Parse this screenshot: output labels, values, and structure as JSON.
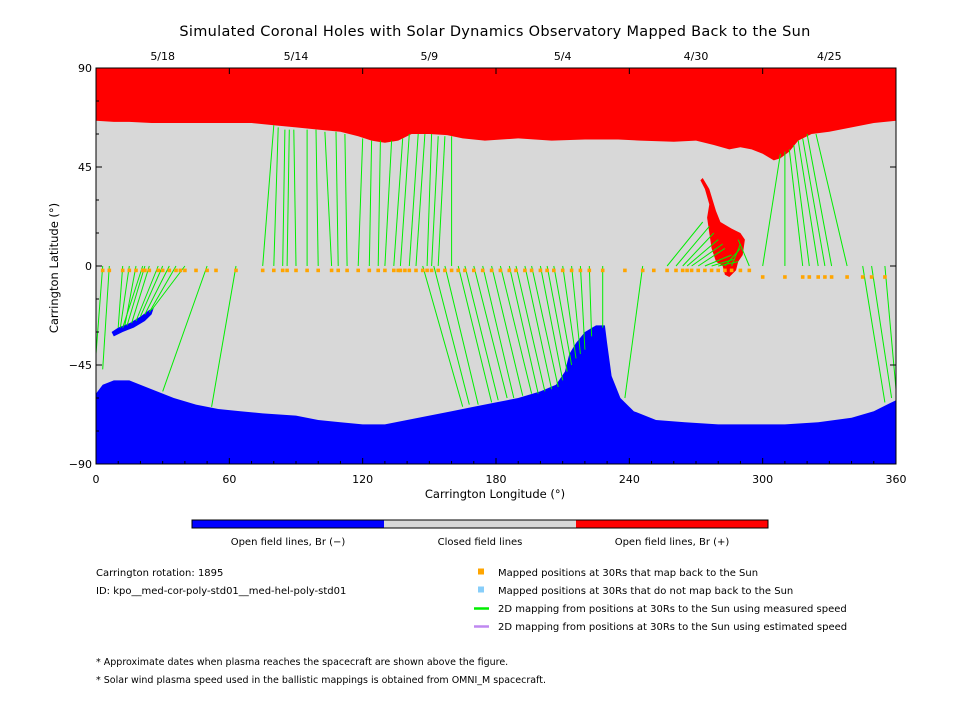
{
  "chart_data": {
    "type": "map",
    "title": "Simulated Coronal Holes with Solar Dynamics Observatory Mapped Back to the Sun",
    "xlabel": "Carrington Longitude (°)",
    "ylabel": "Carrington Latitude (°)",
    "xlim": [
      0,
      360
    ],
    "ylim": [
      -90,
      90
    ],
    "x_ticks": [
      0,
      60,
      120,
      180,
      240,
      300,
      360
    ],
    "y_ticks": [
      -90,
      -45,
      0,
      45,
      90
    ],
    "x_tick_labels": [
      "0",
      "60",
      "120",
      "180",
      "240",
      "300",
      "360"
    ],
    "y_tick_labels": [
      "−90",
      "−45",
      "0",
      "45",
      "90"
    ],
    "top_dates": [
      {
        "lon": 30,
        "label": "5/18"
      },
      {
        "lon": 90,
        "label": "5/14"
      },
      {
        "lon": 150,
        "label": "5/9"
      },
      {
        "lon": 210,
        "label": "5/4"
      },
      {
        "lon": 270,
        "label": "4/30"
      },
      {
        "lon": 330,
        "label": "4/25"
      }
    ],
    "colors": {
      "open_negative": "#0000ff",
      "closed": "#d8d8d8",
      "open_positive": "#ff0000",
      "mapped_back": "#ffa500",
      "not_mapped": "#87cefa",
      "measured_speed": "#00ee00",
      "estimated_speed": "#bf88f0"
    },
    "north_hole_boundary": [
      [
        0,
        66
      ],
      [
        8,
        65.5
      ],
      [
        15,
        65.5
      ],
      [
        25,
        65
      ],
      [
        35,
        65
      ],
      [
        50,
        65
      ],
      [
        70,
        65
      ],
      [
        80,
        64
      ],
      [
        90,
        63
      ],
      [
        100,
        62
      ],
      [
        110,
        61
      ],
      [
        118,
        59
      ],
      [
        124,
        57
      ],
      [
        130,
        56
      ],
      [
        136,
        57
      ],
      [
        142,
        60
      ],
      [
        150,
        60
      ],
      [
        158,
        59.5
      ],
      [
        165,
        58
      ],
      [
        175,
        57
      ],
      [
        190,
        58
      ],
      [
        205,
        57
      ],
      [
        220,
        57.5
      ],
      [
        235,
        57.5
      ],
      [
        245,
        57
      ],
      [
        260,
        56.5
      ],
      [
        270,
        57
      ],
      [
        278,
        55
      ],
      [
        285,
        53
      ],
      [
        290,
        54
      ],
      [
        295,
        53
      ],
      [
        300,
        51
      ],
      [
        305,
        48
      ],
      [
        308,
        49
      ],
      [
        312,
        52
      ],
      [
        316,
        57
      ],
      [
        322,
        60
      ],
      [
        330,
        61
      ],
      [
        340,
        63
      ],
      [
        350,
        65
      ],
      [
        360,
        66
      ]
    ],
    "south_hole_boundary": [
      [
        0,
        -58
      ],
      [
        3,
        -54
      ],
      [
        8,
        -52
      ],
      [
        15,
        -52
      ],
      [
        25,
        -56
      ],
      [
        35,
        -60
      ],
      [
        45,
        -63
      ],
      [
        55,
        -65
      ],
      [
        65,
        -66
      ],
      [
        75,
        -67
      ],
      [
        90,
        -68
      ],
      [
        100,
        -70
      ],
      [
        110,
        -71
      ],
      [
        120,
        -72
      ],
      [
        130,
        -72
      ],
      [
        140,
        -70
      ],
      [
        150,
        -68
      ],
      [
        160,
        -66
      ],
      [
        170,
        -64
      ],
      [
        180,
        -62
      ],
      [
        190,
        -60
      ],
      [
        200,
        -57
      ],
      [
        207,
        -54
      ],
      [
        211,
        -48
      ],
      [
        213,
        -40
      ],
      [
        216,
        -35
      ],
      [
        220,
        -30
      ],
      [
        225,
        -27
      ],
      [
        229,
        -27
      ],
      [
        230,
        -35
      ],
      [
        232,
        -50
      ],
      [
        236,
        -60
      ],
      [
        242,
        -66
      ],
      [
        252,
        -70
      ],
      [
        265,
        -71
      ],
      [
        280,
        -72
      ],
      [
        295,
        -72
      ],
      [
        310,
        -72
      ],
      [
        325,
        -71
      ],
      [
        340,
        -69
      ],
      [
        350,
        -66
      ],
      [
        360,
        -61
      ]
    ],
    "south_patch": [
      [
        8,
        -32
      ],
      [
        12,
        -30
      ],
      [
        17,
        -28
      ],
      [
        22,
        -25
      ],
      [
        25,
        -22
      ],
      [
        26,
        -19
      ],
      [
        24,
        -20
      ],
      [
        20,
        -23
      ],
      [
        15,
        -26
      ],
      [
        10,
        -28
      ],
      [
        7,
        -30
      ]
    ],
    "north_tongue": [
      [
        273,
        40
      ],
      [
        276,
        35
      ],
      [
        279,
        25
      ],
      [
        281,
        20
      ],
      [
        286,
        17
      ],
      [
        290,
        15
      ],
      [
        292,
        12
      ],
      [
        291,
        5
      ],
      [
        289,
        2
      ],
      [
        288,
        -2
      ],
      [
        285,
        -5
      ],
      [
        283,
        -4
      ],
      [
        282,
        0
      ],
      [
        279,
        2
      ],
      [
        277,
        8
      ],
      [
        276,
        15
      ],
      [
        275,
        22
      ],
      [
        276,
        28
      ],
      [
        274,
        35
      ],
      [
        272,
        39
      ]
    ],
    "mapped_points": {
      "lat": -2,
      "lons": [
        3,
        6,
        12,
        15,
        18,
        21,
        22,
        24,
        28,
        30,
        33,
        36,
        38,
        40,
        45,
        50,
        54,
        63,
        75,
        80,
        84,
        86,
        90,
        95,
        100,
        106,
        109,
        113,
        118,
        123,
        127,
        130,
        134,
        136,
        137,
        139,
        141,
        144,
        147,
        149,
        151,
        154,
        157,
        160,
        163,
        166,
        170,
        174,
        178,
        182,
        186,
        189,
        193,
        196,
        200,
        203,
        206,
        210,
        214,
        218,
        222,
        228,
        238,
        246,
        251,
        257,
        261,
        264,
        266,
        268,
        271,
        274,
        277,
        280,
        283,
        286,
        290,
        294,
        300,
        310,
        318,
        321,
        325,
        328,
        331,
        338,
        345,
        349,
        355
      ],
      "lat_right_group": -5,
      "right_group_from_lon": 300
    },
    "mapping_lines": [
      [
        3,
        0,
        0,
        -40
      ],
      [
        6,
        0,
        3,
        -47
      ],
      [
        12,
        0,
        10,
        -28
      ],
      [
        15,
        0,
        11,
        -28
      ],
      [
        18,
        0,
        13,
        -27
      ],
      [
        21,
        0,
        12,
        -28
      ],
      [
        22,
        0,
        14,
        -27
      ],
      [
        24,
        0,
        16,
        -26
      ],
      [
        28,
        0,
        18,
        -25
      ],
      [
        30,
        0,
        20,
        -23
      ],
      [
        33,
        0,
        22,
        -22
      ],
      [
        36,
        0,
        24,
        -21
      ],
      [
        40,
        0,
        25,
        -20
      ],
      [
        50,
        0,
        30,
        -57
      ],
      [
        63,
        0,
        52,
        -64
      ],
      [
        75,
        0,
        80,
        64
      ],
      [
        80,
        0,
        82,
        63
      ],
      [
        84,
        0,
        85,
        62
      ],
      [
        86,
        0,
        87,
        62
      ],
      [
        90,
        0,
        89,
        62
      ],
      [
        95,
        0,
        95,
        62
      ],
      [
        100,
        0,
        99,
        62
      ],
      [
        106,
        0,
        103,
        61
      ],
      [
        109,
        0,
        108,
        61
      ],
      [
        113,
        0,
        112,
        60
      ],
      [
        118,
        0,
        120,
        58
      ],
      [
        123,
        0,
        124,
        57
      ],
      [
        127,
        0,
        128,
        57
      ],
      [
        130,
        0,
        133,
        57
      ],
      [
        134,
        0,
        138,
        58
      ],
      [
        137,
        0,
        141,
        60
      ],
      [
        141,
        0,
        145,
        60
      ],
      [
        144,
        0,
        148,
        60
      ],
      [
        149,
        0,
        151,
        60
      ],
      [
        151,
        0,
        154,
        59
      ],
      [
        154,
        0,
        157,
        59
      ],
      [
        160,
        0,
        160,
        59
      ],
      [
        147,
        0,
        165,
        -64
      ],
      [
        152,
        0,
        168,
        -63
      ],
      [
        157,
        0,
        172,
        -63
      ],
      [
        163,
        0,
        178,
        -62
      ],
      [
        166,
        0,
        181,
        -61
      ],
      [
        170,
        0,
        185,
        -60
      ],
      [
        174,
        0,
        188,
        -60
      ],
      [
        178,
        0,
        192,
        -59
      ],
      [
        182,
        0,
        196,
        -58
      ],
      [
        186,
        0,
        199,
        -58
      ],
      [
        189,
        0,
        202,
        -57
      ],
      [
        193,
        0,
        205,
        -56
      ],
      [
        196,
        0,
        208,
        -55
      ],
      [
        200,
        0,
        210,
        -52
      ],
      [
        203,
        0,
        212,
        -48
      ],
      [
        206,
        0,
        214,
        -45
      ],
      [
        210,
        0,
        216,
        -42
      ],
      [
        214,
        0,
        218,
        -40
      ],
      [
        218,
        0,
        220,
        -38
      ],
      [
        222,
        0,
        223,
        -32
      ],
      [
        228,
        0,
        228,
        -28
      ],
      [
        246,
        0,
        238,
        -60
      ],
      [
        257,
        0,
        273,
        20
      ],
      [
        261,
        0,
        276,
        18
      ],
      [
        264,
        0,
        278,
        15
      ],
      [
        266,
        0,
        280,
        12
      ],
      [
        268,
        0,
        282,
        10
      ],
      [
        271,
        0,
        283,
        8
      ],
      [
        274,
        0,
        286,
        5
      ],
      [
        277,
        0,
        287,
        3
      ],
      [
        280,
        0,
        289,
        2
      ],
      [
        283,
        0,
        290,
        8
      ],
      [
        286,
        0,
        290,
        10
      ],
      [
        294,
        0,
        289,
        12
      ],
      [
        300,
        0,
        308,
        51
      ],
      [
        310,
        0,
        310,
        52
      ],
      [
        318,
        0,
        312,
        53
      ],
      [
        321,
        0,
        314,
        55
      ],
      [
        325,
        0,
        316,
        57
      ],
      [
        328,
        0,
        318,
        58
      ],
      [
        331,
        0,
        320,
        60
      ],
      [
        338,
        0,
        324,
        60
      ],
      [
        345,
        0,
        355,
        -62
      ],
      [
        349,
        0,
        358,
        -60
      ],
      [
        355,
        0,
        360,
        -56
      ]
    ],
    "colorbar": {
      "segments": [
        {
          "label": "Open field lines, Br (−)",
          "color": "#0000ff"
        },
        {
          "label": "Closed field lines",
          "color": "#d8d8d8"
        },
        {
          "label": "Open field lines, Br (+)",
          "color": "#ff0000"
        }
      ]
    },
    "info": {
      "rotation": "Carrington rotation: 1895",
      "id": "ID: kpo__med-cor-poly-std01__med-hel-poly-std01"
    },
    "legend": [
      {
        "type": "square",
        "color": "#ffa500",
        "label": "Mapped positions at 30Rs that map back to the Sun"
      },
      {
        "type": "square",
        "color": "#87cefa",
        "label": "Mapped positions at 30Rs that do not map back to the Sun"
      },
      {
        "type": "line",
        "color": "#00ee00",
        "label": "2D mapping from positions at 30Rs to the Sun using measured speed"
      },
      {
        "type": "line",
        "color": "#bf88f0",
        "label": "2D mapping from positions at 30Rs to the Sun using estimated speed"
      }
    ],
    "footnotes": [
      "* Approximate dates when plasma reaches the spacecraft are shown above the figure.",
      "* Solar wind plasma speed used in the ballistic mappings is obtained from OMNI_M spacecraft."
    ]
  }
}
